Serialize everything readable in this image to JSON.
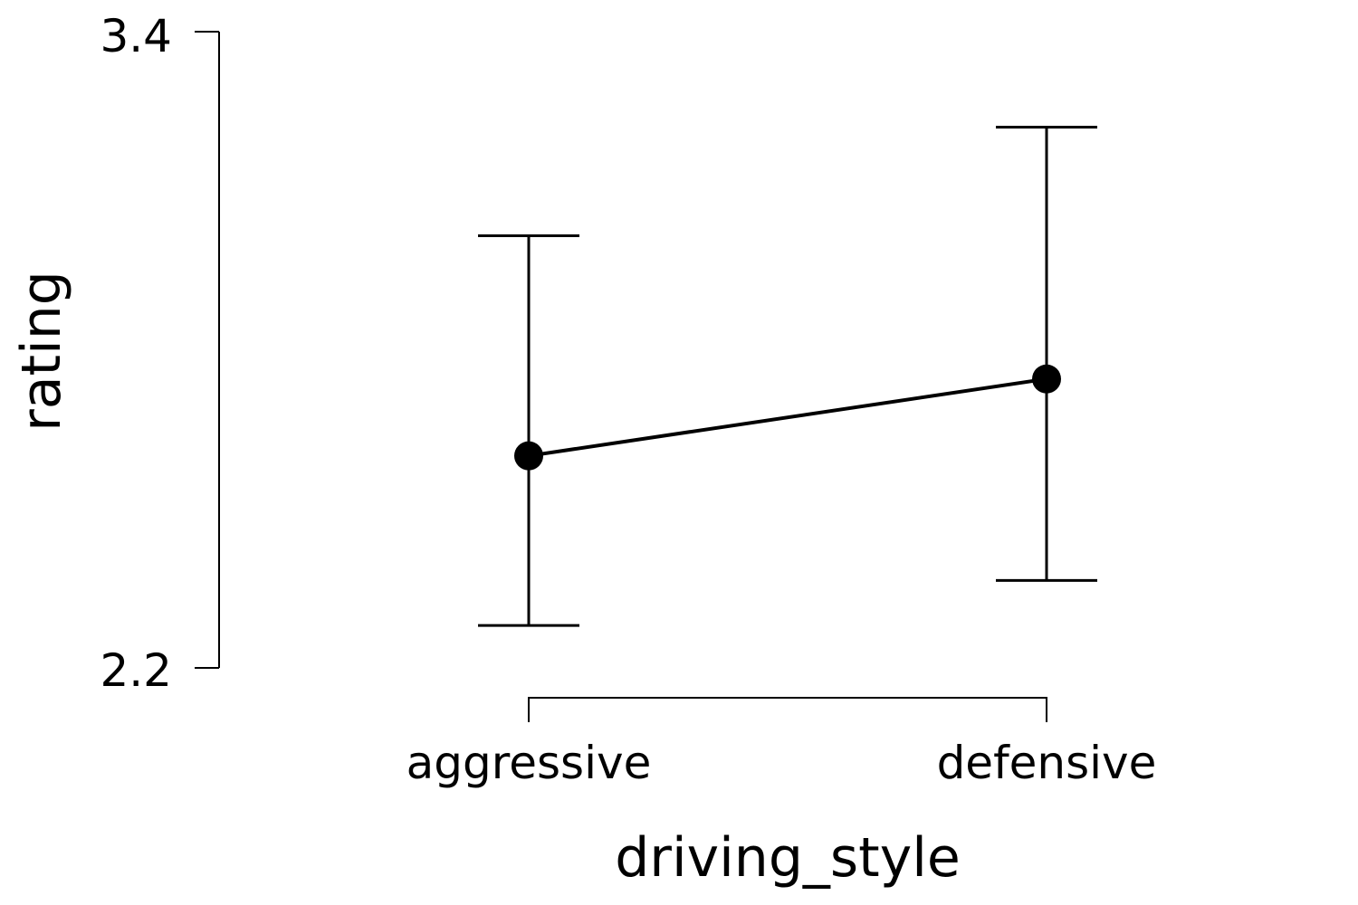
{
  "chart_data": {
    "type": "line",
    "title": "",
    "xlabel": "driving_style",
    "ylabel": "rating",
    "categories": [
      "aggressive",
      "defensive"
    ],
    "values": [
      2.6,
      2.745
    ],
    "error_lower": [
      2.28,
      2.365
    ],
    "error_upper": [
      3.015,
      3.22
    ],
    "ylim": [
      2.2,
      3.4
    ],
    "yticks": [
      "2.2",
      "3.4"
    ],
    "grid": false,
    "legend": "none"
  }
}
